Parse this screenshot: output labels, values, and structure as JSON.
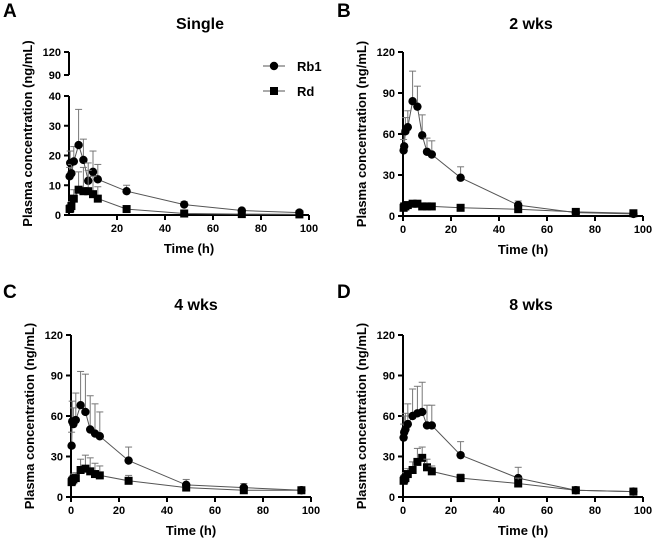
{
  "figure": {
    "legend": [
      {
        "name": "Rb1",
        "marker": "circle"
      },
      {
        "name": "Rd",
        "marker": "square"
      }
    ]
  },
  "chart_data": [
    {
      "panel": "A",
      "type": "line",
      "title": "Single",
      "xlabel": "Time (h)",
      "ylabel": "Plasma concentration (ng/mL)",
      "xlim": [
        0,
        100
      ],
      "xticks": [
        "20",
        "40",
        "60",
        "80",
        "100"
      ],
      "ylim": [
        0,
        120
      ],
      "axis_break": {
        "lower": [
          0,
          40
        ],
        "upper": [
          90,
          120
        ]
      },
      "yticks": [
        "0",
        "10",
        "20",
        "30",
        "40",
        "90",
        "120"
      ],
      "legend_position": "top-right",
      "series": [
        {
          "name": "Rb1",
          "marker": "circle",
          "x": [
            0.25,
            0.5,
            1,
            2,
            4,
            6,
            8,
            10,
            12,
            24,
            48,
            72,
            96
          ],
          "y": [
            13,
            17.5,
            14,
            18,
            23.5,
            18.5,
            11.5,
            14.5,
            12,
            8,
            3.5,
            1.5,
            0.8
          ],
          "err": [
            3,
            4,
            3,
            5,
            12,
            7,
            6,
            7,
            5,
            2,
            1,
            0.5,
            0.3
          ]
        },
        {
          "name": "Rd",
          "marker": "square",
          "x": [
            0.25,
            0.5,
            1,
            2,
            4,
            6,
            8,
            10,
            12,
            24,
            48,
            72,
            96
          ],
          "y": [
            2,
            2.2,
            3,
            5.5,
            8.5,
            8,
            8,
            7,
            5.5,
            2,
            0.5,
            0.3,
            0.2
          ],
          "err": [
            1,
            1,
            1.5,
            3,
            6,
            8,
            7,
            6,
            4,
            1,
            0.3,
            0.2,
            0.1
          ]
        }
      ]
    },
    {
      "panel": "B",
      "type": "line",
      "title": "2 wks",
      "xlabel": "Time (h)",
      "ylabel": "Plasma concentration (ng/mL)",
      "xlim": [
        0,
        100
      ],
      "xticks": [
        "0",
        "20",
        "40",
        "60",
        "80",
        "100"
      ],
      "ylim": [
        0,
        120
      ],
      "yticks": [
        "0",
        "30",
        "60",
        "90",
        "120"
      ],
      "series": [
        {
          "name": "Rb1",
          "marker": "circle",
          "x": [
            0.25,
            0.5,
            1,
            2,
            4,
            6,
            8,
            10,
            12,
            24,
            48,
            72,
            96
          ],
          "y": [
            48,
            51,
            62,
            65,
            84,
            80,
            59,
            47,
            45,
            28,
            8,
            2.5,
            1.5
          ],
          "err": [
            8,
            10,
            10,
            12,
            22,
            15,
            15,
            10,
            10,
            8,
            3,
            1,
            0.5
          ]
        },
        {
          "name": "Rd",
          "marker": "square",
          "x": [
            0.25,
            0.5,
            1,
            2,
            4,
            6,
            8,
            10,
            12,
            24,
            48,
            72,
            96
          ],
          "y": [
            6,
            7,
            7,
            8,
            9,
            9,
            7,
            7,
            7,
            6,
            5,
            3,
            2
          ],
          "err": [
            1,
            1,
            1,
            1.5,
            2,
            2,
            1,
            1,
            1,
            1,
            2,
            0.8,
            0.5
          ]
        }
      ]
    },
    {
      "panel": "C",
      "type": "line",
      "title": "4 wks",
      "xlabel": "Time (h)",
      "ylabel": "Plasma concentration (ng/mL)",
      "xlim": [
        0,
        100
      ],
      "xticks": [
        "0",
        "20",
        "40",
        "60",
        "80",
        "100"
      ],
      "ylim": [
        0,
        120
      ],
      "yticks": [
        "0",
        "30",
        "60",
        "90",
        "120"
      ],
      "series": [
        {
          "name": "Rb1",
          "marker": "circle",
          "x": [
            0.25,
            0.5,
            1,
            2,
            4,
            6,
            8,
            10,
            12,
            24,
            48,
            72,
            96
          ],
          "y": [
            38,
            56,
            54,
            57,
            68,
            63,
            50,
            47,
            45,
            27,
            9,
            7,
            5
          ],
          "err": [
            10,
            15,
            12,
            20,
            25,
            28,
            25,
            22,
            18,
            10,
            4,
            3,
            1
          ]
        },
        {
          "name": "Rd",
          "marker": "square",
          "x": [
            0.25,
            0.5,
            1,
            2,
            4,
            6,
            8,
            10,
            12,
            24,
            48,
            72,
            96
          ],
          "y": [
            11,
            12,
            13,
            14,
            20,
            21,
            19,
            17,
            16,
            12,
            7,
            5,
            5
          ],
          "err": [
            3,
            3,
            4,
            4,
            8,
            10,
            10,
            8,
            7,
            4,
            2,
            2,
            1
          ]
        }
      ]
    },
    {
      "panel": "D",
      "type": "line",
      "title": "8 wks",
      "xlabel": "Time (h)",
      "ylabel": "Plasma concentration (ng/mL)",
      "xlim": [
        0,
        100
      ],
      "xticks": [
        "0",
        "20",
        "40",
        "60",
        "80",
        "100"
      ],
      "ylim": [
        0,
        120
      ],
      "yticks": [
        "0",
        "30",
        "60",
        "90",
        "120"
      ],
      "series": [
        {
          "name": "Rb1",
          "marker": "circle",
          "x": [
            0.25,
            0.5,
            1,
            2,
            4,
            6,
            8,
            10,
            12,
            24,
            48,
            72,
            96
          ],
          "y": [
            44,
            48,
            50,
            54,
            60,
            62,
            63,
            53,
            53,
            31,
            14,
            5,
            4
          ],
          "err": [
            10,
            12,
            12,
            15,
            20,
            20,
            22,
            15,
            15,
            10,
            8,
            2,
            1
          ]
        },
        {
          "name": "Rd",
          "marker": "square",
          "x": [
            0.25,
            0.5,
            1,
            2,
            4,
            6,
            8,
            10,
            12,
            24,
            48,
            72,
            96
          ],
          "y": [
            12,
            13,
            14,
            17,
            20,
            26,
            29,
            22,
            19,
            14,
            10,
            5,
            4
          ],
          "err": [
            3,
            3,
            4,
            4,
            6,
            10,
            8,
            6,
            4,
            3,
            4,
            2,
            1
          ]
        }
      ]
    }
  ]
}
